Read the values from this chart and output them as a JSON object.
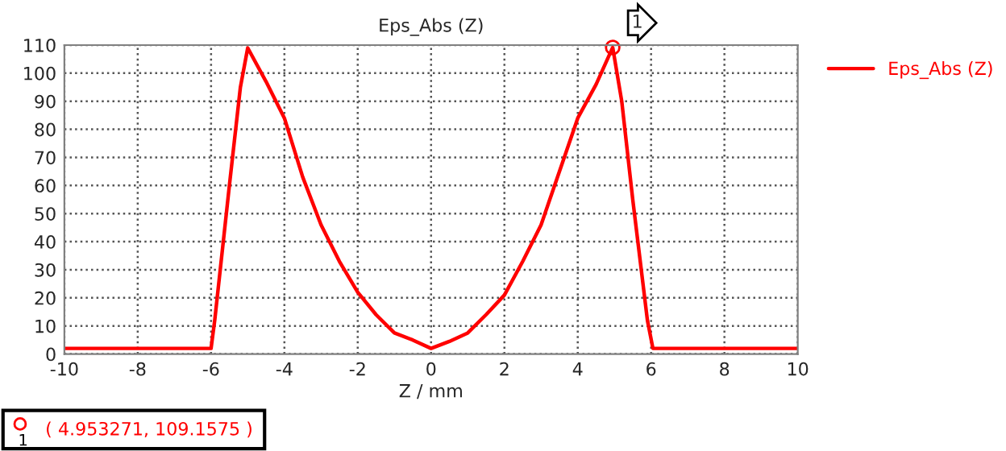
{
  "chart_data": {
    "type": "line",
    "title": "Eps_Abs (Z)",
    "xlabel": "Z / mm",
    "series": [
      {
        "name": "Eps_Abs (Z)",
        "color": "#ff0000",
        "x": [
          -10,
          -6,
          -5.9,
          -5.5,
          -5.2,
          -5,
          -4.5,
          -4,
          -3.5,
          -3,
          -2.5,
          -2,
          -1.5,
          -1,
          -0.5,
          0,
          0.5,
          1,
          1.5,
          2,
          2.5,
          3,
          3.5,
          4,
          4.5,
          4.953271,
          5.2,
          5.5,
          5.9,
          6.05,
          10
        ],
        "values": [
          2,
          2,
          12,
          60,
          95,
          109,
          97,
          84,
          63,
          46,
          33,
          22,
          14,
          7.5,
          5,
          2,
          4.5,
          7.5,
          14,
          21,
          33,
          46,
          65,
          84,
          96,
          109.1575,
          90,
          55,
          12,
          2,
          2
        ]
      }
    ],
    "xlim": [
      -10,
      10
    ],
    "xticks": [
      -10,
      -8,
      -6,
      -4,
      -2,
      0,
      2,
      4,
      6,
      8,
      10
    ],
    "ylim": [
      0,
      110
    ],
    "yticks": [
      0,
      10,
      20,
      30,
      40,
      50,
      60,
      70,
      80,
      90,
      100,
      110
    ],
    "grid": true,
    "legend": "right",
    "marker": "none",
    "line_style": "solid",
    "annotations": [
      {
        "text": "1",
        "x": 4.953271,
        "y": 109.1575
      },
      "1",
      "( 4.953271, 109.1575 )"
    ]
  }
}
